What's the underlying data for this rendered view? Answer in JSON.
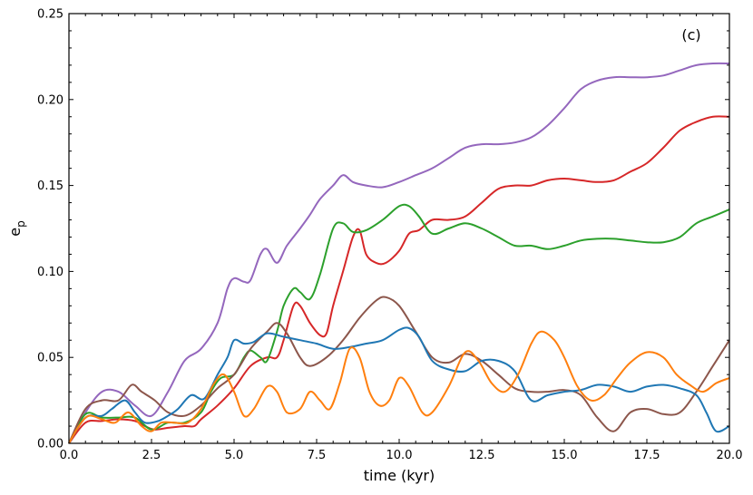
{
  "chart_data": {
    "type": "line",
    "title": "",
    "annotation": "(c)",
    "xlabel": "time (kyr)",
    "ylabel_main": "e",
    "ylabel_sub": "p",
    "xlim": [
      0,
      20
    ],
    "ylim": [
      0,
      0.25
    ],
    "x_ticks": [
      0,
      2.5,
      5,
      7.5,
      10,
      12.5,
      15,
      17.5,
      20
    ],
    "x_tick_labels": [
      "0.0",
      "2.5",
      "5.0",
      "7.5",
      "10.0",
      "12.5",
      "15.0",
      "17.5",
      "20.0"
    ],
    "y_ticks": [
      0,
      0.05,
      0.1,
      0.15,
      0.2,
      0.25
    ],
    "y_tick_labels": [
      "0.00",
      "0.05",
      "0.10",
      "0.15",
      "0.20",
      "0.25"
    ],
    "grid": false,
    "legend": "none",
    "series": [
      {
        "color": "#9467bd",
        "points": [
          [
            0,
            0
          ],
          [
            0.5,
            0.018
          ],
          [
            1,
            0.03
          ],
          [
            1.5,
            0.03
          ],
          [
            2,
            0.022
          ],
          [
            2.5,
            0.016
          ],
          [
            3,
            0.03
          ],
          [
            3.5,
            0.048
          ],
          [
            4,
            0.055
          ],
          [
            4.5,
            0.07
          ],
          [
            4.8,
            0.09
          ],
          [
            5,
            0.096
          ],
          [
            5.3,
            0.094
          ],
          [
            5.5,
            0.095
          ],
          [
            5.8,
            0.11
          ],
          [
            6,
            0.113
          ],
          [
            6.3,
            0.105
          ],
          [
            6.6,
            0.115
          ],
          [
            7,
            0.125
          ],
          [
            7.3,
            0.133
          ],
          [
            7.6,
            0.142
          ],
          [
            8,
            0.15
          ],
          [
            8.3,
            0.156
          ],
          [
            8.6,
            0.152
          ],
          [
            9,
            0.15
          ],
          [
            9.5,
            0.149
          ],
          [
            10,
            0.152
          ],
          [
            10.5,
            0.156
          ],
          [
            11,
            0.16
          ],
          [
            11.5,
            0.166
          ],
          [
            12,
            0.172
          ],
          [
            12.5,
            0.174
          ],
          [
            13,
            0.174
          ],
          [
            13.5,
            0.175
          ],
          [
            14,
            0.178
          ],
          [
            14.5,
            0.185
          ],
          [
            15,
            0.195
          ],
          [
            15.5,
            0.206
          ],
          [
            16,
            0.211
          ],
          [
            16.5,
            0.213
          ],
          [
            17,
            0.213
          ],
          [
            17.5,
            0.213
          ],
          [
            18,
            0.214
          ],
          [
            18.5,
            0.217
          ],
          [
            19,
            0.22
          ],
          [
            19.5,
            0.221
          ],
          [
            20,
            0.221
          ]
        ]
      },
      {
        "color": "#d62728",
        "points": [
          [
            0,
            0
          ],
          [
            0.5,
            0.012
          ],
          [
            1,
            0.013
          ],
          [
            1.5,
            0.014
          ],
          [
            2,
            0.013
          ],
          [
            2.3,
            0.01
          ],
          [
            2.6,
            0.008
          ],
          [
            3,
            0.009
          ],
          [
            3.5,
            0.01
          ],
          [
            3.8,
            0.01
          ],
          [
            4,
            0.014
          ],
          [
            4.5,
            0.022
          ],
          [
            5,
            0.032
          ],
          [
            5.5,
            0.045
          ],
          [
            6,
            0.05
          ],
          [
            6.3,
            0.05
          ],
          [
            6.5,
            0.06
          ],
          [
            6.8,
            0.08
          ],
          [
            7,
            0.08
          ],
          [
            7.3,
            0.07
          ],
          [
            7.6,
            0.063
          ],
          [
            7.8,
            0.064
          ],
          [
            8,
            0.08
          ],
          [
            8.3,
            0.1
          ],
          [
            8.6,
            0.12
          ],
          [
            8.8,
            0.124
          ],
          [
            9,
            0.11
          ],
          [
            9.3,
            0.105
          ],
          [
            9.6,
            0.105
          ],
          [
            10,
            0.112
          ],
          [
            10.3,
            0.122
          ],
          [
            10.6,
            0.124
          ],
          [
            11,
            0.13
          ],
          [
            11.5,
            0.13
          ],
          [
            12,
            0.132
          ],
          [
            12.5,
            0.14
          ],
          [
            13,
            0.148
          ],
          [
            13.5,
            0.15
          ],
          [
            14,
            0.15
          ],
          [
            14.5,
            0.153
          ],
          [
            15,
            0.154
          ],
          [
            15.5,
            0.153
          ],
          [
            16,
            0.152
          ],
          [
            16.5,
            0.153
          ],
          [
            17,
            0.158
          ],
          [
            17.5,
            0.163
          ],
          [
            18,
            0.172
          ],
          [
            18.5,
            0.182
          ],
          [
            19,
            0.187
          ],
          [
            19.5,
            0.19
          ],
          [
            20,
            0.19
          ]
        ]
      },
      {
        "color": "#2ca02c",
        "points": [
          [
            0,
            0
          ],
          [
            0.5,
            0.017
          ],
          [
            1,
            0.015
          ],
          [
            1.5,
            0.015
          ],
          [
            2,
            0.015
          ],
          [
            2.5,
            0.008
          ],
          [
            3,
            0.012
          ],
          [
            3.5,
            0.012
          ],
          [
            4,
            0.018
          ],
          [
            4.3,
            0.03
          ],
          [
            4.6,
            0.038
          ],
          [
            5,
            0.04
          ],
          [
            5.3,
            0.05
          ],
          [
            5.5,
            0.054
          ],
          [
            5.8,
            0.05
          ],
          [
            6,
            0.048
          ],
          [
            6.3,
            0.065
          ],
          [
            6.5,
            0.08
          ],
          [
            6.8,
            0.09
          ],
          [
            7,
            0.088
          ],
          [
            7.3,
            0.084
          ],
          [
            7.6,
            0.098
          ],
          [
            8,
            0.125
          ],
          [
            8.3,
            0.128
          ],
          [
            8.6,
            0.123
          ],
          [
            9,
            0.124
          ],
          [
            9.5,
            0.13
          ],
          [
            10,
            0.138
          ],
          [
            10.3,
            0.138
          ],
          [
            10.6,
            0.132
          ],
          [
            11,
            0.122
          ],
          [
            11.5,
            0.125
          ],
          [
            12,
            0.128
          ],
          [
            12.5,
            0.125
          ],
          [
            13,
            0.12
          ],
          [
            13.5,
            0.115
          ],
          [
            14,
            0.115
          ],
          [
            14.5,
            0.113
          ],
          [
            15,
            0.115
          ],
          [
            15.5,
            0.118
          ],
          [
            16,
            0.119
          ],
          [
            16.5,
            0.119
          ],
          [
            17,
            0.118
          ],
          [
            17.5,
            0.117
          ],
          [
            18,
            0.117
          ],
          [
            18.5,
            0.12
          ],
          [
            19,
            0.128
          ],
          [
            19.5,
            0.132
          ],
          [
            20,
            0.136
          ]
        ]
      },
      {
        "color": "#8c564b",
        "points": [
          [
            0,
            0
          ],
          [
            0.5,
            0.02
          ],
          [
            1,
            0.025
          ],
          [
            1.5,
            0.025
          ],
          [
            1.9,
            0.034
          ],
          [
            2.2,
            0.03
          ],
          [
            2.6,
            0.025
          ],
          [
            3,
            0.018
          ],
          [
            3.5,
            0.016
          ],
          [
            4,
            0.022
          ],
          [
            4.5,
            0.032
          ],
          [
            5,
            0.04
          ],
          [
            5.5,
            0.055
          ],
          [
            6,
            0.065
          ],
          [
            6.3,
            0.07
          ],
          [
            6.6,
            0.064
          ],
          [
            7,
            0.05
          ],
          [
            7.3,
            0.045
          ],
          [
            7.8,
            0.05
          ],
          [
            8.3,
            0.06
          ],
          [
            8.8,
            0.073
          ],
          [
            9.3,
            0.083
          ],
          [
            9.6,
            0.085
          ],
          [
            10,
            0.08
          ],
          [
            10.5,
            0.065
          ],
          [
            11,
            0.05
          ],
          [
            11.5,
            0.047
          ],
          [
            12,
            0.052
          ],
          [
            12.5,
            0.048
          ],
          [
            13,
            0.04
          ],
          [
            13.5,
            0.032
          ],
          [
            14,
            0.03
          ],
          [
            14.5,
            0.03
          ],
          [
            15,
            0.031
          ],
          [
            15.5,
            0.028
          ],
          [
            16,
            0.015
          ],
          [
            16.5,
            0.007
          ],
          [
            17,
            0.018
          ],
          [
            17.5,
            0.02
          ],
          [
            18,
            0.017
          ],
          [
            18.5,
            0.018
          ],
          [
            19,
            0.03
          ],
          [
            19.5,
            0.045
          ],
          [
            20,
            0.06
          ]
        ]
      },
      {
        "color": "#1f77b4",
        "points": [
          [
            0,
            0
          ],
          [
            0.5,
            0.015
          ],
          [
            1,
            0.016
          ],
          [
            1.3,
            0.02
          ],
          [
            1.7,
            0.025
          ],
          [
            2,
            0.018
          ],
          [
            2.3,
            0.012
          ],
          [
            2.7,
            0.013
          ],
          [
            3,
            0.016
          ],
          [
            3.3,
            0.02
          ],
          [
            3.7,
            0.028
          ],
          [
            4.1,
            0.026
          ],
          [
            4.5,
            0.04
          ],
          [
            4.8,
            0.05
          ],
          [
            5,
            0.06
          ],
          [
            5.3,
            0.058
          ],
          [
            5.6,
            0.059
          ],
          [
            6,
            0.064
          ],
          [
            6.5,
            0.062
          ],
          [
            7,
            0.06
          ],
          [
            7.5,
            0.058
          ],
          [
            8,
            0.055
          ],
          [
            8.5,
            0.056
          ],
          [
            9,
            0.058
          ],
          [
            9.5,
            0.06
          ],
          [
            10,
            0.066
          ],
          [
            10.3,
            0.067
          ],
          [
            10.6,
            0.062
          ],
          [
            11,
            0.048
          ],
          [
            11.5,
            0.043
          ],
          [
            12,
            0.042
          ],
          [
            12.5,
            0.048
          ],
          [
            13,
            0.048
          ],
          [
            13.5,
            0.042
          ],
          [
            14,
            0.025
          ],
          [
            14.5,
            0.028
          ],
          [
            15,
            0.03
          ],
          [
            15.5,
            0.031
          ],
          [
            16,
            0.034
          ],
          [
            16.5,
            0.033
          ],
          [
            17,
            0.03
          ],
          [
            17.5,
            0.033
          ],
          [
            18,
            0.034
          ],
          [
            18.5,
            0.032
          ],
          [
            19,
            0.028
          ],
          [
            19.3,
            0.018
          ],
          [
            19.6,
            0.007
          ],
          [
            20,
            0.01
          ]
        ]
      },
      {
        "color": "#ff7f0e",
        "points": [
          [
            0,
            0
          ],
          [
            0.3,
            0.01
          ],
          [
            0.6,
            0.016
          ],
          [
            1,
            0.014
          ],
          [
            1.4,
            0.012
          ],
          [
            1.8,
            0.018
          ],
          [
            2.2,
            0.01
          ],
          [
            2.5,
            0.007
          ],
          [
            2.8,
            0.012
          ],
          [
            3.2,
            0.012
          ],
          [
            3.6,
            0.012
          ],
          [
            4,
            0.02
          ],
          [
            4.4,
            0.035
          ],
          [
            4.7,
            0.04
          ],
          [
            5,
            0.03
          ],
          [
            5.3,
            0.016
          ],
          [
            5.6,
            0.02
          ],
          [
            6,
            0.033
          ],
          [
            6.3,
            0.03
          ],
          [
            6.6,
            0.018
          ],
          [
            7,
            0.02
          ],
          [
            7.3,
            0.03
          ],
          [
            7.6,
            0.025
          ],
          [
            7.9,
            0.02
          ],
          [
            8.2,
            0.035
          ],
          [
            8.5,
            0.055
          ],
          [
            8.8,
            0.05
          ],
          [
            9.1,
            0.03
          ],
          [
            9.4,
            0.022
          ],
          [
            9.7,
            0.025
          ],
          [
            10,
            0.038
          ],
          [
            10.3,
            0.033
          ],
          [
            10.7,
            0.018
          ],
          [
            11,
            0.018
          ],
          [
            11.5,
            0.033
          ],
          [
            12,
            0.053
          ],
          [
            12.4,
            0.048
          ],
          [
            12.8,
            0.035
          ],
          [
            13.2,
            0.03
          ],
          [
            13.6,
            0.04
          ],
          [
            14,
            0.058
          ],
          [
            14.3,
            0.065
          ],
          [
            14.7,
            0.06
          ],
          [
            15,
            0.05
          ],
          [
            15.4,
            0.033
          ],
          [
            15.8,
            0.025
          ],
          [
            16.2,
            0.028
          ],
          [
            16.6,
            0.038
          ],
          [
            17,
            0.047
          ],
          [
            17.5,
            0.053
          ],
          [
            18,
            0.05
          ],
          [
            18.4,
            0.04
          ],
          [
            18.8,
            0.034
          ],
          [
            19.2,
            0.03
          ],
          [
            19.6,
            0.035
          ],
          [
            20,
            0.038
          ]
        ]
      }
    ]
  }
}
